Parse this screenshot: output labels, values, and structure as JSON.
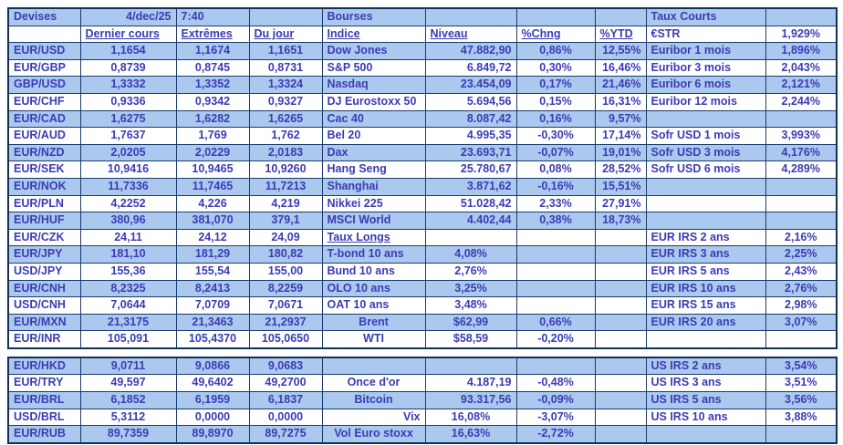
{
  "meta": {
    "date": "4/dec/25",
    "time": "7:40"
  },
  "colors": {
    "row_highlight": "#abc9ef",
    "text": "#3b3bb4",
    "border": "#1b3a6b"
  },
  "devises": {
    "title": "Devises",
    "headers": [
      "Dernier cours",
      "Extrêmes",
      "Du jour"
    ],
    "rows": [
      {
        "pair": "EUR/USD",
        "last": "1,1654",
        "ext": "1,1674",
        "day": "1,1651"
      },
      {
        "pair": "EUR/GBP",
        "last": "0,8739",
        "ext": "0,8745",
        "day": "0,8731"
      },
      {
        "pair": "GBP/USD",
        "last": "1,3332",
        "ext": "1,3352",
        "day": "1,3324"
      },
      {
        "pair": "EUR/CHF",
        "last": "0,9336",
        "ext": "0,9342",
        "day": "0,9327"
      },
      {
        "pair": "EUR/CAD",
        "last": "1,6275",
        "ext": "1,6282",
        "day": "1,6265"
      },
      {
        "pair": "EUR/AUD",
        "last": "1,7637",
        "ext": "1,769",
        "day": "1,762"
      },
      {
        "pair": "EUR/NZD",
        "last": "2,0205",
        "ext": "2,0229",
        "day": "2,0183"
      },
      {
        "pair": "EUR/SEK",
        "last": "10,9416",
        "ext": "10,9465",
        "day": "10,9260"
      },
      {
        "pair": "EUR/NOK",
        "last": "11,7336",
        "ext": "11,7465",
        "day": "11,7213"
      },
      {
        "pair": "EUR/PLN",
        "last": "4,2252",
        "ext": "4,226",
        "day": "4,219"
      },
      {
        "pair": "EUR/HUF",
        "last": "380,96",
        "ext": "381,070",
        "day": "379,1"
      },
      {
        "pair": "EUR/CZK",
        "last": "24,11",
        "ext": "24,12",
        "day": "24,09"
      },
      {
        "pair": "EUR/JPY",
        "last": "181,10",
        "ext": "181,29",
        "day": "180,82"
      },
      {
        "pair": "USD/JPY",
        "last": "155,36",
        "ext": "155,54",
        "day": "155,00"
      },
      {
        "pair": "EUR/CNH",
        "last": "8,2325",
        "ext": "8,2413",
        "day": "8,2259"
      },
      {
        "pair": "USD/CNH",
        "last": "7,0644",
        "ext": "7,0709",
        "day": "7,0671"
      },
      {
        "pair": "EUR/MXN",
        "last": "21,3175",
        "ext": "21,3463",
        "day": "21,2937"
      },
      {
        "pair": "EUR/INR",
        "last": "105,091",
        "ext": "105,4370",
        "day": "105,0650"
      }
    ],
    "rows2": [
      {
        "pair": "EUR/HKD",
        "last": "9,0711",
        "ext": "9,0866",
        "day": "9,0683"
      },
      {
        "pair": "EUR/TRY",
        "last": "49,597",
        "ext": "49,6402",
        "day": "49,2700"
      },
      {
        "pair": "EUR/BRL",
        "last": "6,1852",
        "ext": "6,1959",
        "day": "6,1837"
      },
      {
        "pair": "USD/BRL",
        "last": "5,3112",
        "ext": "0,0000",
        "day": "0,0000"
      },
      {
        "pair": "EUR/RUB",
        "last": "89,7359",
        "ext": "89,8970",
        "day": "89,7275"
      }
    ]
  },
  "bourses": {
    "title": "Bourses",
    "headers": [
      "Indice",
      "Niveau",
      "%Chng",
      "%YTD"
    ],
    "rows": [
      {
        "label": "Dow Jones",
        "niveau": "47.882,90",
        "chng": "0,86%",
        "ytd": "12,55%"
      },
      {
        "label": "S&P 500",
        "niveau": "6.849,72",
        "chng": "0,30%",
        "ytd": "16,46%"
      },
      {
        "label": "Nasdaq",
        "niveau": "23.454,09",
        "chng": "0,17%",
        "ytd": "21,46%"
      },
      {
        "label": "DJ Eurostoxx 50",
        "niveau": "5.694,56",
        "chng": "0,15%",
        "ytd": "16,31%"
      },
      {
        "label": "Cac 40",
        "niveau": "8.087,42",
        "chng": "0,16%",
        "ytd": "9,57%"
      },
      {
        "label": "Bel 20",
        "niveau": "4.995,35",
        "chng": "-0,30%",
        "ytd": "17,14%"
      },
      {
        "label": "Dax",
        "niveau": "23.693,71",
        "chng": "-0,07%",
        "ytd": "19,01%"
      },
      {
        "label": "Hang Seng",
        "niveau": "25.780,67",
        "chng": "0,08%",
        "ytd": "28,52%"
      },
      {
        "label": "Shanghai",
        "niveau": "3.871,62",
        "chng": "-0,16%",
        "ytd": "15,51%"
      },
      {
        "label": "Nikkei 225",
        "niveau": "51.028,42",
        "chng": "2,33%",
        "ytd": "27,91%"
      },
      {
        "label": "MSCI World",
        "niveau": "4.402,44",
        "chng": "0,38%",
        "ytd": "18,73%"
      },
      {
        "label": "Taux Longs",
        "niveau": "",
        "chng": "",
        "ytd": ""
      },
      {
        "label": "T-bond 10 ans",
        "niveau": "4,08%",
        "chng": "",
        "ytd": ""
      },
      {
        "label": "Bund 10 ans",
        "niveau": "2,76%",
        "chng": "",
        "ytd": ""
      },
      {
        "label": "OLO 10 ans",
        "niveau": "3,25%",
        "chng": "",
        "ytd": ""
      },
      {
        "label": "OAT 10 ans",
        "niveau": "3,48%",
        "chng": "",
        "ytd": ""
      },
      {
        "label": "Brent",
        "niveau": "$62,99",
        "chng": "0,66%",
        "ytd": ""
      },
      {
        "label": "WTI",
        "niveau": "$58,59",
        "chng": "-0,20%",
        "ytd": ""
      }
    ],
    "rows2": [
      {
        "label": "",
        "niveau": "",
        "chng": "",
        "ytd": ""
      },
      {
        "label": "Once d'or",
        "niveau": "4.187,19",
        "chng": "-0,48%",
        "ytd": ""
      },
      {
        "label": "Bitcoin",
        "niveau": "93.317,56",
        "chng": "-0,09%",
        "ytd": ""
      },
      {
        "label": "Vix",
        "niveau": "16,08%",
        "chng": "-3,07%",
        "ytd": ""
      },
      {
        "label": "Vol Euro stoxx",
        "niveau": "16,63%",
        "chng": "-2,72%",
        "ytd": ""
      }
    ]
  },
  "taux_courts": {
    "title": "Taux Courts",
    "rows": [
      {
        "label": "€STR",
        "value": "1,929%"
      },
      {
        "label": "Euribor 1 mois",
        "value": "1,896%"
      },
      {
        "label": "Euribor 3 mois",
        "value": "2,043%"
      },
      {
        "label": "Euribor 6 mois",
        "value": "2,121%"
      },
      {
        "label": "Euribor 12 mois",
        "value": "2,244%"
      },
      {
        "label": "",
        "value": ""
      },
      {
        "label": "Sofr USD 1 mois",
        "value": "3,993%"
      },
      {
        "label": "Sofr USD 3 mois",
        "value": "4,176%"
      },
      {
        "label": "Sofr USD 6 mois",
        "value": "4,289%"
      },
      {
        "label": "",
        "value": ""
      },
      {
        "label": "",
        "value": ""
      },
      {
        "label": "",
        "value": ""
      },
      {
        "label": "EUR IRS 2 ans",
        "value": "2,16%"
      },
      {
        "label": "EUR IRS 3 ans",
        "value": "2,25%"
      },
      {
        "label": "EUR IRS 5 ans",
        "value": "2,43%"
      },
      {
        "label": "EUR IRS 10 ans",
        "value": "2,76%"
      },
      {
        "label": "EUR IRS 15 ans",
        "value": "2,98%"
      },
      {
        "label": "EUR IRS 20 ans",
        "value": "3,07%"
      },
      {
        "label": "",
        "value": ""
      }
    ],
    "rows2": [
      {
        "label": "US IRS 2 ans",
        "value": "3,54%"
      },
      {
        "label": "US IRS 3 ans",
        "value": "3,51%"
      },
      {
        "label": "US IRS 5 ans",
        "value": "3,56%"
      },
      {
        "label": "US IRS 10 ans",
        "value": "3,88%"
      },
      {
        "label": "",
        "value": ""
      }
    ]
  }
}
